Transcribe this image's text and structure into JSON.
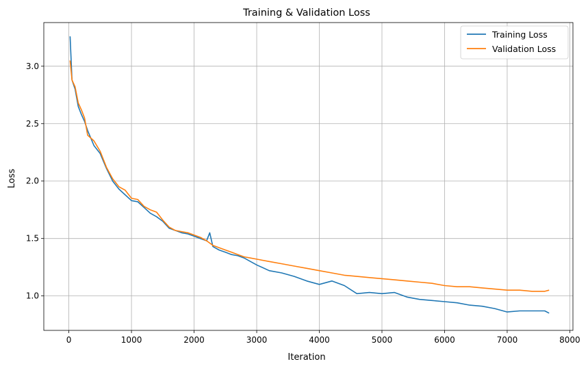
{
  "chart_data": {
    "type": "line",
    "title": "Training & Validation Loss",
    "xlabel": "Iteration",
    "ylabel": "Loss",
    "xlim": [
      -400,
      8050
    ],
    "ylim": [
      0.7,
      3.38
    ],
    "xticks": [
      0,
      1000,
      2000,
      3000,
      4000,
      5000,
      6000,
      7000,
      8000
    ],
    "yticks": [
      1.0,
      1.5,
      2.0,
      2.5,
      3.0
    ],
    "xtick_labels": [
      "0",
      "1000",
      "2000",
      "3000",
      "4000",
      "5000",
      "6000",
      "7000",
      "8000"
    ],
    "ytick_labels": [
      "1.0",
      "1.5",
      "2.0",
      "2.5",
      "3.0"
    ],
    "grid": true,
    "legend": "top-right",
    "series": [
      {
        "name": "Training Loss",
        "color": "#1f77b4",
        "x": [
          20,
          50,
          100,
          150,
          200,
          250,
          300,
          400,
          500,
          600,
          700,
          800,
          900,
          1000,
          1100,
          1200,
          1300,
          1400,
          1500,
          1600,
          1700,
          1800,
          1900,
          2000,
          2100,
          2200,
          2250,
          2300,
          2400,
          2500,
          2600,
          2700,
          2800,
          2900,
          3000,
          3200,
          3400,
          3600,
          3800,
          4000,
          4200,
          4400,
          4600,
          4800,
          5000,
          5200,
          5400,
          5600,
          5800,
          6000,
          6200,
          6400,
          6600,
          6800,
          7000,
          7200,
          7400,
          7600,
          7670
        ],
        "y": [
          3.26,
          2.88,
          2.8,
          2.65,
          2.58,
          2.52,
          2.44,
          2.31,
          2.24,
          2.11,
          2.0,
          1.93,
          1.88,
          1.83,
          1.82,
          1.77,
          1.72,
          1.69,
          1.65,
          1.59,
          1.57,
          1.55,
          1.54,
          1.52,
          1.5,
          1.48,
          1.55,
          1.43,
          1.4,
          1.38,
          1.36,
          1.35,
          1.33,
          1.3,
          1.27,
          1.22,
          1.2,
          1.17,
          1.13,
          1.1,
          1.13,
          1.09,
          1.02,
          1.03,
          1.02,
          1.03,
          0.99,
          0.97,
          0.96,
          0.95,
          0.94,
          0.92,
          0.91,
          0.89,
          0.86,
          0.87,
          0.87,
          0.87,
          0.85
        ]
      },
      {
        "name": "Validation Loss",
        "color": "#ff7f0e",
        "x": [
          20,
          50,
          100,
          150,
          200,
          250,
          300,
          400,
          500,
          600,
          700,
          800,
          900,
          1000,
          1100,
          1200,
          1300,
          1400,
          1500,
          1600,
          1700,
          1800,
          1900,
          2000,
          2100,
          2200,
          2300,
          2400,
          2500,
          2600,
          2700,
          2800,
          2900,
          3000,
          3200,
          3400,
          3600,
          3800,
          4000,
          4200,
          4400,
          4600,
          4800,
          5000,
          5200,
          5400,
          5600,
          5800,
          6000,
          6200,
          6400,
          6600,
          6800,
          7000,
          7200,
          7400,
          7600,
          7670
        ],
        "y": [
          3.05,
          2.88,
          2.82,
          2.68,
          2.62,
          2.55,
          2.4,
          2.35,
          2.26,
          2.12,
          2.02,
          1.95,
          1.92,
          1.85,
          1.84,
          1.78,
          1.75,
          1.73,
          1.66,
          1.6,
          1.57,
          1.56,
          1.55,
          1.53,
          1.51,
          1.48,
          1.44,
          1.42,
          1.4,
          1.38,
          1.36,
          1.34,
          1.33,
          1.32,
          1.3,
          1.28,
          1.26,
          1.24,
          1.22,
          1.2,
          1.18,
          1.17,
          1.16,
          1.15,
          1.14,
          1.13,
          1.12,
          1.11,
          1.09,
          1.08,
          1.08,
          1.07,
          1.06,
          1.05,
          1.05,
          1.04,
          1.04,
          1.05
        ]
      }
    ]
  }
}
